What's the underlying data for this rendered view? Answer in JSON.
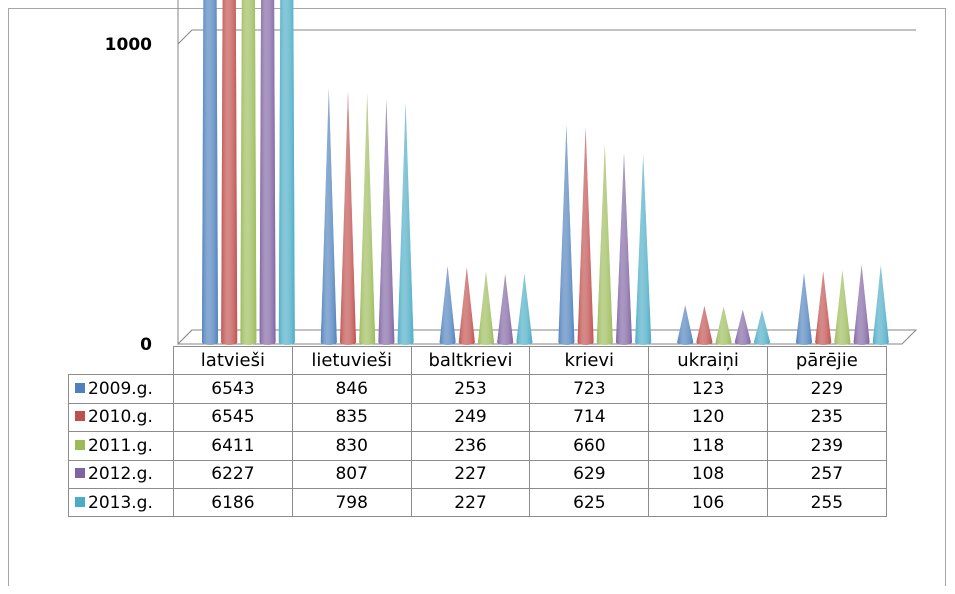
{
  "chart_data": {
    "type": "bar",
    "bar_shape": "cone",
    "categories": [
      "latvieši",
      "lietuvieši",
      "baltkrievi",
      "krievi",
      "ukraiņi",
      "pārējie"
    ],
    "series": [
      {
        "name": "2009.g.",
        "color": "#4f81bd",
        "values": [
          6543,
          846,
          253,
          723,
          123,
          229
        ]
      },
      {
        "name": "2010.g.",
        "color": "#c0504d",
        "values": [
          6545,
          835,
          249,
          714,
          120,
          235
        ]
      },
      {
        "name": "2011.g.",
        "color": "#9bbb59",
        "values": [
          6411,
          830,
          236,
          660,
          118,
          239
        ]
      },
      {
        "name": "2012.g.",
        "color": "#8064a2",
        "values": [
          6227,
          807,
          227,
          629,
          108,
          257
        ]
      },
      {
        "name": "2013.g.",
        "color": "#4bacc6",
        "values": [
          6186,
          798,
          227,
          625,
          106,
          255
        ]
      }
    ],
    "y_ticks": [
      "0",
      "1000",
      "2000",
      "3000",
      "4000",
      "5000",
      "6000",
      "7000"
    ],
    "ylim": [
      0,
      7000
    ],
    "grid": true,
    "legend": "data-table"
  }
}
